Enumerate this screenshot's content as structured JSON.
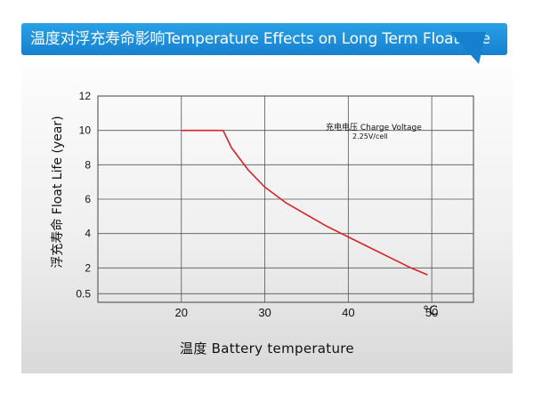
{
  "header": {
    "title": "温度对浮充寿命影响Temperature Effects on Long Term Float Life"
  },
  "colors": {
    "banner": "#1f8fdb",
    "curve": "#d4232a"
  },
  "chart_data": {
    "type": "line",
    "title": "",
    "xlabel": "温度  Battery temperature",
    "ylabel": "浮充寿命  Float Life (year)",
    "x_unit": "°C",
    "xlim": [
      10,
      55
    ],
    "ylim": [
      0,
      12
    ],
    "x_ticks": [
      20,
      30,
      40,
      50
    ],
    "y_ticks": [
      0.5,
      2,
      4,
      6,
      8,
      10,
      12
    ],
    "grid": true,
    "annotation": {
      "line1": "充电电压 Charge Voltage",
      "line2": "2.25V/cell"
    },
    "series": [
      {
        "x": [
          20,
          25,
          26,
          28,
          30,
          32.5,
          35,
          37.5,
          40,
          42.5,
          45,
          47.5,
          49.5
        ],
        "values": [
          10,
          10,
          9.0,
          7.7,
          6.7,
          5.8,
          5.1,
          4.4,
          3.8,
          3.2,
          2.6,
          2.0,
          1.6
        ]
      }
    ]
  }
}
